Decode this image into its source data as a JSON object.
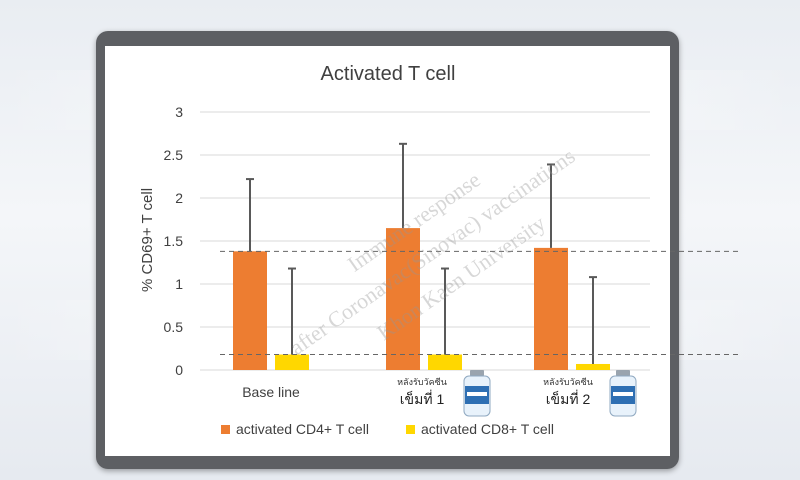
{
  "watermark": {
    "line1": "Immune response",
    "line2": "after Coronavac(Sinovac) vaccinations",
    "line3": "Khon Kaen University"
  },
  "colors": {
    "cd4": "#ED7D31",
    "cd8": "#FFD700",
    "frame": "#5d5f63",
    "grid": "#d9d9d9"
  },
  "icons": {
    "vial": "vaccine-vial-icon"
  },
  "chart_data": {
    "type": "bar",
    "title": "Activated T cell",
    "ylabel": "% CD69+ T cell",
    "xlabel": "",
    "ylim": [
      0,
      3
    ],
    "yticks": [
      "0",
      "0.5",
      "1",
      "1.5",
      "2",
      "2.5",
      "3"
    ],
    "categories": [
      "Base line",
      "เข็มที่ 1",
      "เข็มที่ 2"
    ],
    "category_sublabels": [
      "",
      "หลังรับวัคซีน",
      "หลังรับวัคซีน"
    ],
    "series": [
      {
        "name": "activated CD4+ T cell",
        "values": [
          1.38,
          1.65,
          1.42
        ],
        "error_upper": [
          2.22,
          2.63,
          2.39
        ]
      },
      {
        "name": "activated CD8+ T cell",
        "values": [
          0.18,
          0.18,
          0.07
        ],
        "error_upper": [
          1.18,
          1.18,
          1.08
        ]
      }
    ],
    "reference_lines": [
      1.38,
      0.18
    ],
    "grid": true,
    "legend_position": "bottom"
  }
}
